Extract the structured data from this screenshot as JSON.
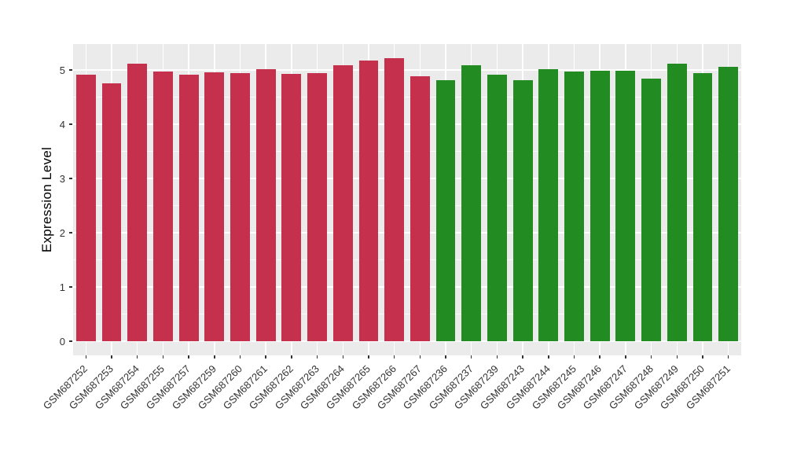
{
  "figure": {
    "background": "#FFFFFF"
  },
  "chart_data": {
    "type": "bar",
    "title": "",
    "xlabel": "",
    "ylabel": "Expression Level",
    "ylim": [
      -0.26,
      5.48
    ],
    "yticks": [
      0,
      1,
      2,
      3,
      4,
      5
    ],
    "grid": "major and minor horizontal white gridlines, vertical white gridlines at each category center, on gray panel",
    "legend_position": "none",
    "categories": [
      "GSM687252",
      "GSM687253",
      "GSM687254",
      "GSM687255",
      "GSM687257",
      "GSM687259",
      "GSM687260",
      "GSM687261",
      "GSM687262",
      "GSM687263",
      "GSM687264",
      "GSM687265",
      "GSM687266",
      "GSM687267",
      "GSM687236",
      "GSM687237",
      "GSM687239",
      "GSM687243",
      "GSM687244",
      "GSM687245",
      "GSM687246",
      "GSM687247",
      "GSM687248",
      "GSM687249",
      "GSM687250",
      "GSM687251"
    ],
    "values": [
      4.92,
      4.75,
      5.12,
      4.97,
      4.91,
      4.96,
      4.94,
      5.02,
      4.93,
      4.95,
      5.09,
      5.18,
      5.22,
      4.89,
      4.82,
      5.09,
      4.91,
      4.81,
      5.01,
      4.97,
      4.99,
      4.99,
      4.84,
      5.12,
      4.94,
      5.06
    ],
    "groups": [
      "group1",
      "group1",
      "group1",
      "group1",
      "group1",
      "group1",
      "group1",
      "group1",
      "group1",
      "group1",
      "group1",
      "group1",
      "group1",
      "group1",
      "group2",
      "group2",
      "group2",
      "group2",
      "group2",
      "group2",
      "group2",
      "group2",
      "group2",
      "group2",
      "group2",
      "group2"
    ],
    "group_colors": {
      "group1": "#C5314D",
      "group2": "#228B22"
    },
    "colors": {
      "panel_bg": "#EBEBEB",
      "gridline": "#FFFFFF",
      "axis_text": "#333333",
      "axis_title": "#000000",
      "tick_mark": "#333333"
    }
  }
}
